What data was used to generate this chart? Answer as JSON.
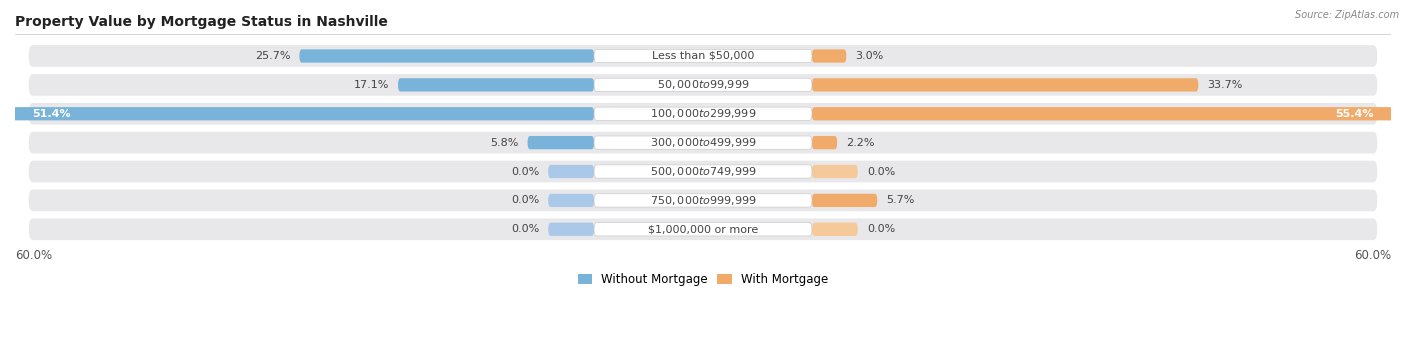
{
  "title": "Property Value by Mortgage Status in Nashville",
  "source": "Source: ZipAtlas.com",
  "categories": [
    "Less than $50,000",
    "$50,000 to $99,999",
    "$100,000 to $299,999",
    "$300,000 to $499,999",
    "$500,000 to $749,999",
    "$750,000 to $999,999",
    "$1,000,000 or more"
  ],
  "without_mortgage": [
    25.7,
    17.1,
    51.4,
    5.8,
    0.0,
    0.0,
    0.0
  ],
  "with_mortgage": [
    3.0,
    33.7,
    55.4,
    2.2,
    0.0,
    5.7,
    0.0
  ],
  "axis_limit": 60.0,
  "color_without": "#7ab3d9",
  "color_with": "#f0aa6a",
  "color_without_stub": "#aac8e8",
  "color_with_stub": "#f5c99a",
  "row_bg": "#e8e8ea",
  "title_fontsize": 10,
  "label_fontsize": 8,
  "tick_fontsize": 8.5
}
